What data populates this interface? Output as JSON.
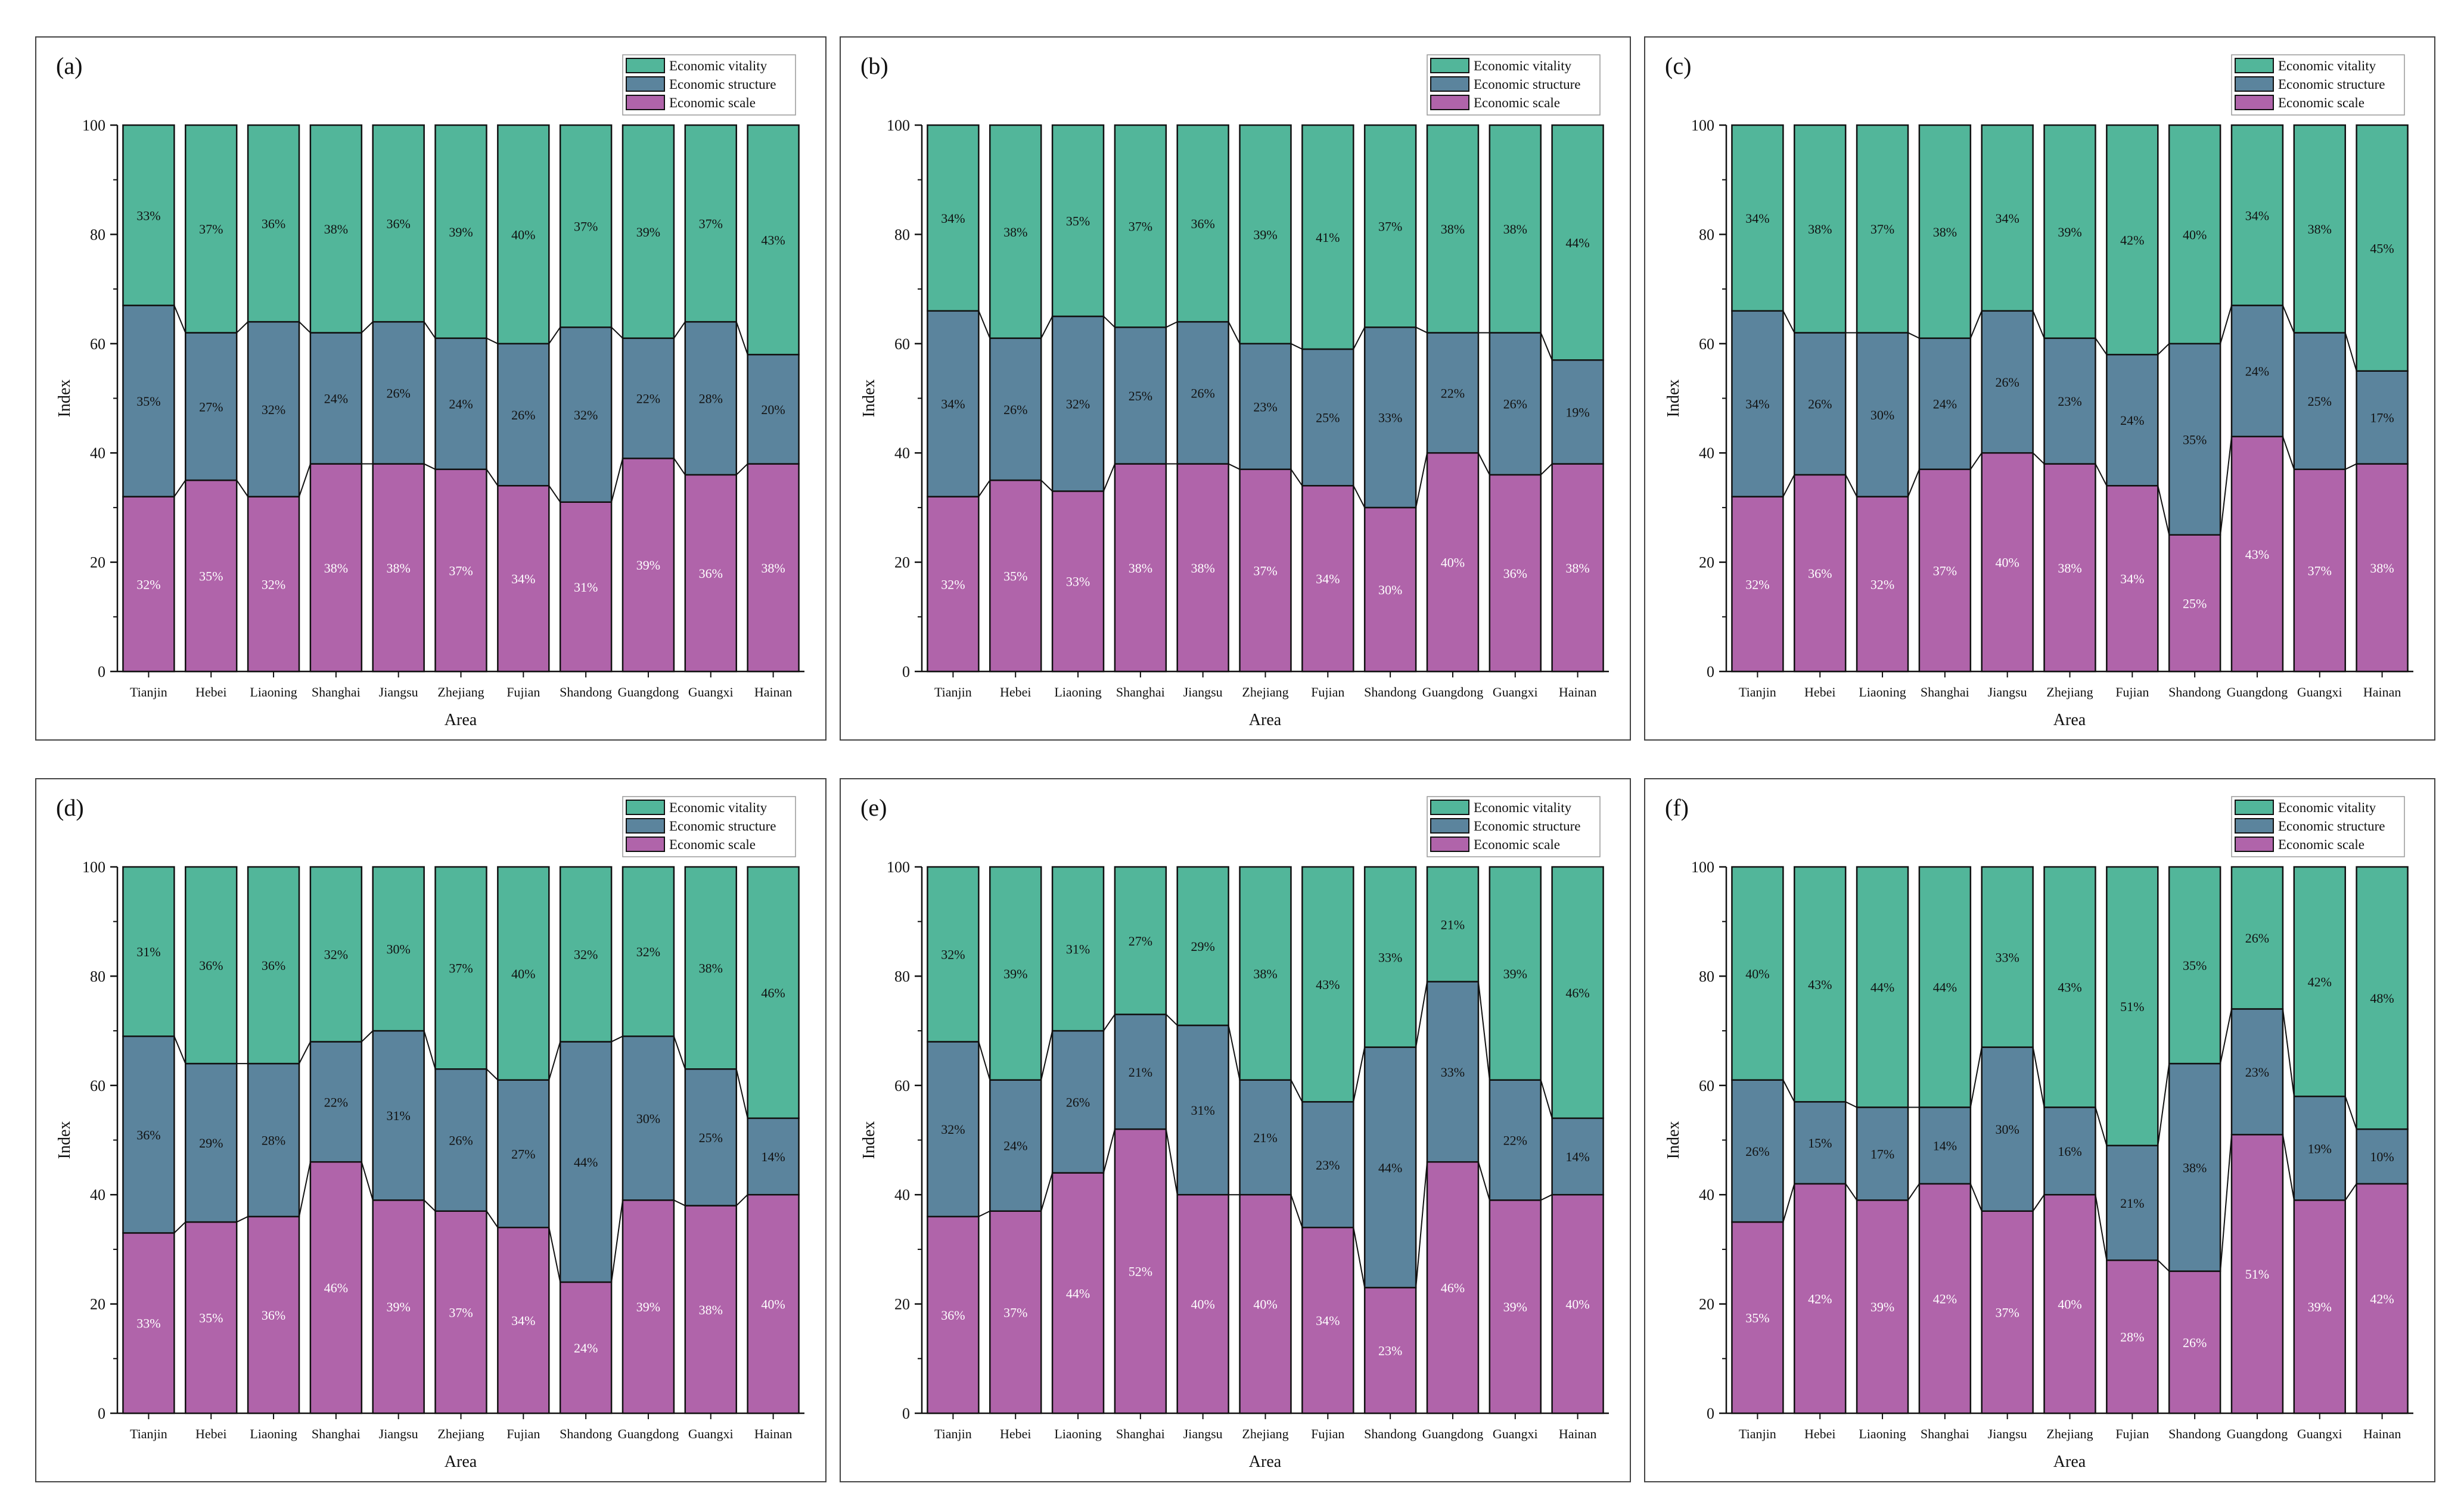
{
  "colors": {
    "vitality": "#52b69a",
    "structure": "#5b849d",
    "scale": "#b064aa",
    "stroke": "#111111",
    "frame": "#444444"
  },
  "chart_data": [
    {
      "type": "stacked-bar",
      "panel_label": "(a)",
      "xlabel": "Area",
      "ylabel": "Index",
      "ylim": [
        0,
        100
      ],
      "yticks": [
        "0",
        "20",
        "40",
        "60",
        "80",
        "100"
      ],
      "categories": [
        "Tianjin",
        "Hebei",
        "Liaoning",
        "Shanghai",
        "Jiangsu",
        "Zhejiang",
        "Fujian",
        "Shandong",
        "Guangdong",
        "Guangxi",
        "Hainan"
      ],
      "legend": [
        "Economic vitality",
        "Economic structure",
        "Economic scale"
      ],
      "series": [
        {
          "name": "Economic scale",
          "values": [
            32,
            35,
            32,
            38,
            38,
            37,
            34,
            31,
            39,
            36,
            38
          ],
          "labels": [
            "32%",
            "35%",
            "32%",
            "38%",
            "38%",
            "37%",
            "34%",
            "31%",
            "39%",
            "36%",
            "38%"
          ]
        },
        {
          "name": "Economic structure",
          "values": [
            35,
            27,
            32,
            24,
            26,
            24,
            26,
            32,
            22,
            28,
            20
          ],
          "labels": [
            "35%",
            "27%",
            "32%",
            "24%",
            "26%",
            "24%",
            "26%",
            "32%",
            "22%",
            "28%",
            "20%"
          ]
        },
        {
          "name": "Economic vitality",
          "values": [
            33,
            37,
            36,
            38,
            36,
            39,
            40,
            37,
            39,
            37,
            43
          ],
          "labels": [
            "33%",
            "37%",
            "36%",
            "38%",
            "36%",
            "39%",
            "40%",
            "37%",
            "39%",
            "37%",
            "43%"
          ]
        }
      ]
    },
    {
      "type": "stacked-bar",
      "panel_label": "(b)",
      "xlabel": "Area",
      "ylabel": "Index",
      "ylim": [
        0,
        100
      ],
      "yticks": [
        "0",
        "20",
        "40",
        "60",
        "80",
        "100"
      ],
      "categories": [
        "Tianjin",
        "Hebei",
        "Liaoning",
        "Shanghai",
        "Jiangsu",
        "Zhejiang",
        "Fujian",
        "Shandong",
        "Guangdong",
        "Guangxi",
        "Hainan"
      ],
      "legend": [
        "Economic vitality",
        "Economic structure",
        "Economic scale"
      ],
      "series": [
        {
          "name": "Economic scale",
          "values": [
            32,
            35,
            33,
            38,
            38,
            37,
            34,
            30,
            40,
            36,
            38
          ],
          "labels": [
            "32%",
            "35%",
            "33%",
            "38%",
            "38%",
            "37%",
            "34%",
            "30%",
            "40%",
            "36%",
            "38%"
          ]
        },
        {
          "name": "Economic structure",
          "values": [
            34,
            26,
            32,
            25,
            26,
            23,
            25,
            33,
            22,
            26,
            19
          ],
          "labels": [
            "34%",
            "26%",
            "32%",
            "25%",
            "26%",
            "23%",
            "25%",
            "33%",
            "22%",
            "26%",
            "19%"
          ]
        },
        {
          "name": "Economic vitality",
          "values": [
            34,
            38,
            35,
            37,
            36,
            39,
            41,
            37,
            38,
            38,
            44
          ],
          "labels": [
            "34%",
            "38%",
            "35%",
            "37%",
            "36%",
            "39%",
            "41%",
            "37%",
            "38%",
            "38%",
            "44%"
          ]
        }
      ]
    },
    {
      "type": "stacked-bar",
      "panel_label": "(c)",
      "xlabel": "Area",
      "ylabel": "Index",
      "ylim": [
        0,
        100
      ],
      "yticks": [
        "0",
        "20",
        "40",
        "60",
        "80",
        "100"
      ],
      "categories": [
        "Tianjin",
        "Hebei",
        "Liaoning",
        "Shanghai",
        "Jiangsu",
        "Zhejiang",
        "Fujian",
        "Shandong",
        "Guangdong",
        "Guangxi",
        "Hainan"
      ],
      "legend": [
        "Economic vitality",
        "Economic structure",
        "Economic scale"
      ],
      "series": [
        {
          "name": "Economic scale",
          "values": [
            32,
            36,
            32,
            37,
            40,
            38,
            34,
            25,
            43,
            37,
            38
          ],
          "labels": [
            "32%",
            "36%",
            "32%",
            "37%",
            "40%",
            "38%",
            "34%",
            "25%",
            "43%",
            "37%",
            "38%"
          ]
        },
        {
          "name": "Economic structure",
          "values": [
            34,
            26,
            30,
            24,
            26,
            23,
            24,
            35,
            24,
            25,
            17
          ],
          "labels": [
            "34%",
            "26%",
            "30%",
            "24%",
            "26%",
            "23%",
            "24%",
            "35%",
            "24%",
            "25%",
            "17%"
          ]
        },
        {
          "name": "Economic vitality",
          "values": [
            34,
            38,
            37,
            38,
            34,
            39,
            42,
            40,
            34,
            38,
            45
          ],
          "labels": [
            "34%",
            "38%",
            "37%",
            "38%",
            "34%",
            "39%",
            "42%",
            "40%",
            "34%",
            "38%",
            "45%"
          ]
        }
      ]
    },
    {
      "type": "stacked-bar",
      "panel_label": "(d)",
      "xlabel": "Area",
      "ylabel": "Index",
      "ylim": [
        0,
        100
      ],
      "yticks": [
        "0",
        "20",
        "40",
        "60",
        "80",
        "100"
      ],
      "categories": [
        "Tianjin",
        "Hebei",
        "Liaoning",
        "Shanghai",
        "Jiangsu",
        "Zhejiang",
        "Fujian",
        "Shandong",
        "Guangdong",
        "Guangxi",
        "Hainan"
      ],
      "legend": [
        "Economic vitality",
        "Economic structure",
        "Economic scale"
      ],
      "series": [
        {
          "name": "Economic scale",
          "values": [
            33,
            35,
            36,
            46,
            39,
            37,
            34,
            24,
            39,
            38,
            40
          ],
          "labels": [
            "33%",
            "35%",
            "36%",
            "46%",
            "39%",
            "37%",
            "34%",
            "24%",
            "39%",
            "38%",
            "40%"
          ]
        },
        {
          "name": "Economic structure",
          "values": [
            36,
            29,
            28,
            22,
            31,
            26,
            27,
            44,
            30,
            25,
            14
          ],
          "labels": [
            "36%",
            "29%",
            "28%",
            "22%",
            "31%",
            "26%",
            "27%",
            "44%",
            "30%",
            "25%",
            "14%"
          ]
        },
        {
          "name": "Economic vitality",
          "values": [
            31,
            36,
            36,
            32,
            30,
            37,
            40,
            32,
            32,
            38,
            46
          ],
          "labels": [
            "31%",
            "36%",
            "36%",
            "32%",
            "30%",
            "37%",
            "40%",
            "32%",
            "32%",
            "38%",
            "46%"
          ]
        }
      ]
    },
    {
      "type": "stacked-bar",
      "panel_label": "(e)",
      "xlabel": "Area",
      "ylabel": "Index",
      "ylim": [
        0,
        100
      ],
      "yticks": [
        "0",
        "20",
        "40",
        "60",
        "80",
        "100"
      ],
      "categories": [
        "Tianjin",
        "Hebei",
        "Liaoning",
        "Shanghai",
        "Jiangsu",
        "Zhejiang",
        "Fujian",
        "Shandong",
        "Guangdong",
        "Guangxi",
        "Hainan"
      ],
      "legend": [
        "Economic vitality",
        "Economic structure",
        "Economic scale"
      ],
      "series": [
        {
          "name": "Economic scale",
          "values": [
            36,
            37,
            44,
            52,
            40,
            40,
            34,
            23,
            46,
            39,
            40
          ],
          "labels": [
            "36%",
            "37%",
            "44%",
            "52%",
            "40%",
            "40%",
            "34%",
            "23%",
            "46%",
            "39%",
            "40%"
          ]
        },
        {
          "name": "Economic structure",
          "values": [
            32,
            24,
            26,
            21,
            31,
            21,
            23,
            44,
            33,
            22,
            14
          ],
          "labels": [
            "32%",
            "24%",
            "26%",
            "21%",
            "31%",
            "21%",
            "23%",
            "44%",
            "33%",
            "22%",
            "14%"
          ]
        },
        {
          "name": "Economic vitality",
          "values": [
            32,
            39,
            31,
            27,
            29,
            38,
            43,
            33,
            21,
            39,
            46
          ],
          "labels": [
            "32%",
            "39%",
            "31%",
            "27%",
            "29%",
            "38%",
            "43%",
            "33%",
            "21%",
            "39%",
            "46%"
          ]
        }
      ]
    },
    {
      "type": "stacked-bar",
      "panel_label": "(f)",
      "xlabel": "Area",
      "ylabel": "Index",
      "ylim": [
        0,
        100
      ],
      "yticks": [
        "0",
        "20",
        "40",
        "60",
        "80",
        "100"
      ],
      "categories": [
        "Tianjin",
        "Hebei",
        "Liaoning",
        "Shanghai",
        "Jiangsu",
        "Zhejiang",
        "Fujian",
        "Shandong",
        "Guangdong",
        "Guangxi",
        "Hainan"
      ],
      "legend": [
        "Economic vitality",
        "Economic structure",
        "Economic scale"
      ],
      "series": [
        {
          "name": "Economic scale",
          "values": [
            35,
            42,
            39,
            42,
            37,
            40,
            28,
            26,
            51,
            39,
            42
          ],
          "labels": [
            "35%",
            "42%",
            "39%",
            "42%",
            "37%",
            "40%",
            "28%",
            "26%",
            "51%",
            "39%",
            "42%"
          ]
        },
        {
          "name": "Economic structure",
          "values": [
            26,
            15,
            17,
            14,
            30,
            16,
            21,
            38,
            23,
            19,
            10
          ],
          "labels": [
            "26%",
            "15%",
            "17%",
            "14%",
            "30%",
            "16%",
            "21%",
            "38%",
            "23%",
            "19%",
            "10%"
          ]
        },
        {
          "name": "Economic vitality",
          "values": [
            40,
            43,
            44,
            44,
            33,
            43,
            51,
            35,
            26,
            42,
            48
          ],
          "labels": [
            "40%",
            "43%",
            "44%",
            "44%",
            "33%",
            "43%",
            "51%",
            "35%",
            "26%",
            "42%",
            "48%"
          ]
        }
      ]
    }
  ]
}
